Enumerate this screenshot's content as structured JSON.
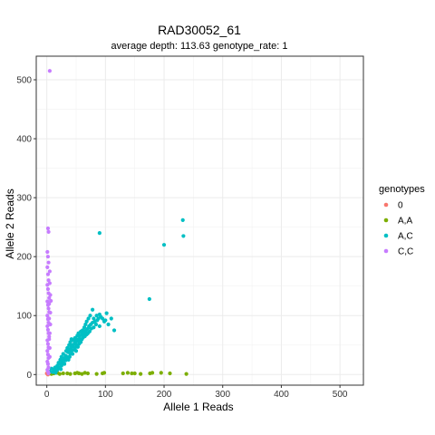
{
  "chart_data": {
    "type": "scatter",
    "title": "RAD30052_61",
    "subtitle": "average depth:  113.63  genotype_rate:  1",
    "xlabel": "Allele 1 Reads",
    "ylabel": "Allele 2 Reads",
    "xlim": [
      -18,
      540
    ],
    "ylim": [
      -18,
      540
    ],
    "xticks": [
      0,
      100,
      200,
      300,
      400,
      500
    ],
    "yticks": [
      0,
      100,
      200,
      300,
      400,
      500
    ],
    "grid": true,
    "legend": {
      "title": "genotypes",
      "position": "right"
    },
    "series": [
      {
        "name": "0",
        "color": "#F8766D",
        "points": [
          [
            1,
            1
          ],
          [
            2,
            0
          ],
          [
            0,
            2
          ]
        ]
      },
      {
        "name": "A,A",
        "color": "#7CAE00",
        "points": [
          [
            3,
            3
          ],
          [
            5,
            2
          ],
          [
            8,
            1
          ],
          [
            12,
            2
          ],
          [
            18,
            3
          ],
          [
            22,
            1
          ],
          [
            28,
            2
          ],
          [
            35,
            2
          ],
          [
            40,
            1
          ],
          [
            48,
            2
          ],
          [
            52,
            3
          ],
          [
            55,
            2
          ],
          [
            60,
            1
          ],
          [
            65,
            3
          ],
          [
            70,
            2
          ],
          [
            85,
            1
          ],
          [
            95,
            2
          ],
          [
            98,
            3
          ],
          [
            130,
            2
          ],
          [
            138,
            3
          ],
          [
            145,
            2
          ],
          [
            150,
            2
          ],
          [
            160,
            1
          ],
          [
            176,
            2
          ],
          [
            180,
            3
          ],
          [
            195,
            3
          ],
          [
            210,
            2
          ],
          [
            238,
            1
          ]
        ]
      },
      {
        "name": "A,C",
        "color": "#00BFC4",
        "points": [
          [
            5,
            5
          ],
          [
            8,
            10
          ],
          [
            10,
            4
          ],
          [
            12,
            8
          ],
          [
            14,
            12
          ],
          [
            15,
            3
          ],
          [
            16,
            6
          ],
          [
            18,
            15
          ],
          [
            18,
            8
          ],
          [
            20,
            20
          ],
          [
            20,
            12
          ],
          [
            22,
            18
          ],
          [
            23,
            25
          ],
          [
            24,
            9
          ],
          [
            25,
            15
          ],
          [
            25,
            30
          ],
          [
            26,
            22
          ],
          [
            27,
            20
          ],
          [
            28,
            35
          ],
          [
            28,
            25
          ],
          [
            30,
            18
          ],
          [
            30,
            28
          ],
          [
            32,
            32
          ],
          [
            32,
            24
          ],
          [
            33,
            40
          ],
          [
            34,
            28
          ],
          [
            35,
            45
          ],
          [
            35,
            30
          ],
          [
            36,
            38
          ],
          [
            37,
            25
          ],
          [
            38,
            50
          ],
          [
            38,
            42
          ],
          [
            39,
            30
          ],
          [
            40,
            35
          ],
          [
            40,
            55
          ],
          [
            41,
            45
          ],
          [
            42,
            40
          ],
          [
            42,
            60
          ],
          [
            43,
            50
          ],
          [
            44,
            35
          ],
          [
            45,
            48
          ],
          [
            45,
            58
          ],
          [
            46,
            42
          ],
          [
            47,
            52
          ],
          [
            48,
            45
          ],
          [
            48,
            62
          ],
          [
            49,
            55
          ],
          [
            50,
            40
          ],
          [
            50,
            60
          ],
          [
            51,
            50
          ],
          [
            52,
            57
          ],
          [
            52,
            66
          ],
          [
            53,
            47
          ],
          [
            54,
            70
          ],
          [
            55,
            60
          ],
          [
            55,
            52
          ],
          [
            56,
            65
          ],
          [
            57,
            58
          ],
          [
            58,
            73
          ],
          [
            58,
            55
          ],
          [
            60,
            60
          ],
          [
            60,
            68
          ],
          [
            61,
            75
          ],
          [
            62,
            63
          ],
          [
            63,
            70
          ],
          [
            64,
            80
          ],
          [
            65,
            65
          ],
          [
            65,
            72
          ],
          [
            66,
            85
          ],
          [
            67,
            75
          ],
          [
            68,
            68
          ],
          [
            68,
            90
          ],
          [
            70,
            78
          ],
          [
            70,
            70
          ],
          [
            71,
            95
          ],
          [
            72,
            82
          ],
          [
            73,
            73
          ],
          [
            74,
            100
          ],
          [
            75,
            85
          ],
          [
            76,
            78
          ],
          [
            78,
            88
          ],
          [
            78,
            110
          ],
          [
            80,
            80
          ],
          [
            80,
            95
          ],
          [
            82,
            90
          ],
          [
            84,
            85
          ],
          [
            85,
            100
          ],
          [
            86,
            92
          ],
          [
            88,
            95
          ],
          [
            90,
            82
          ],
          [
            90,
            102
          ],
          [
            92,
            98
          ],
          [
            95,
            95
          ],
          [
            98,
            90
          ],
          [
            100,
            92
          ],
          [
            102,
            104
          ],
          [
            105,
            85
          ],
          [
            110,
            95
          ],
          [
            115,
            75
          ],
          [
            90,
            240
          ],
          [
            175,
            128
          ],
          [
            200,
            220
          ],
          [
            232,
            262
          ],
          [
            233,
            235
          ]
        ]
      },
      {
        "name": "C,C",
        "color": "#C77CFF",
        "points": [
          [
            5,
            515
          ],
          [
            2,
            248
          ],
          [
            3,
            242
          ],
          [
            1,
            208
          ],
          [
            2,
            200
          ],
          [
            3,
            190
          ],
          [
            1,
            182
          ],
          [
            2,
            170
          ],
          [
            3,
            160
          ],
          [
            1,
            152
          ],
          [
            2,
            145
          ],
          [
            3,
            138
          ],
          [
            4,
            130
          ],
          [
            1,
            124
          ],
          [
            2,
            118
          ],
          [
            3,
            112
          ],
          [
            4,
            106
          ],
          [
            1,
            100
          ],
          [
            2,
            94
          ],
          [
            3,
            88
          ],
          [
            1,
            82
          ],
          [
            2,
            76
          ],
          [
            3,
            70
          ],
          [
            4,
            64
          ],
          [
            1,
            58
          ],
          [
            2,
            52
          ],
          [
            3,
            46
          ],
          [
            1,
            40
          ],
          [
            2,
            34
          ],
          [
            3,
            28
          ],
          [
            1,
            22
          ],
          [
            2,
            18
          ],
          [
            3,
            12
          ],
          [
            1,
            8
          ],
          [
            2,
            5
          ],
          [
            3,
            2
          ],
          [
            6,
            135
          ],
          [
            6,
            105
          ],
          [
            6,
            85
          ],
          [
            7,
            125
          ],
          [
            5,
            175
          ],
          [
            5,
            155
          ],
          [
            4,
            120
          ],
          [
            4,
            95
          ],
          [
            5,
            70
          ],
          [
            4,
            60
          ],
          [
            5,
            45
          ],
          [
            5,
            30
          ]
        ]
      }
    ]
  }
}
